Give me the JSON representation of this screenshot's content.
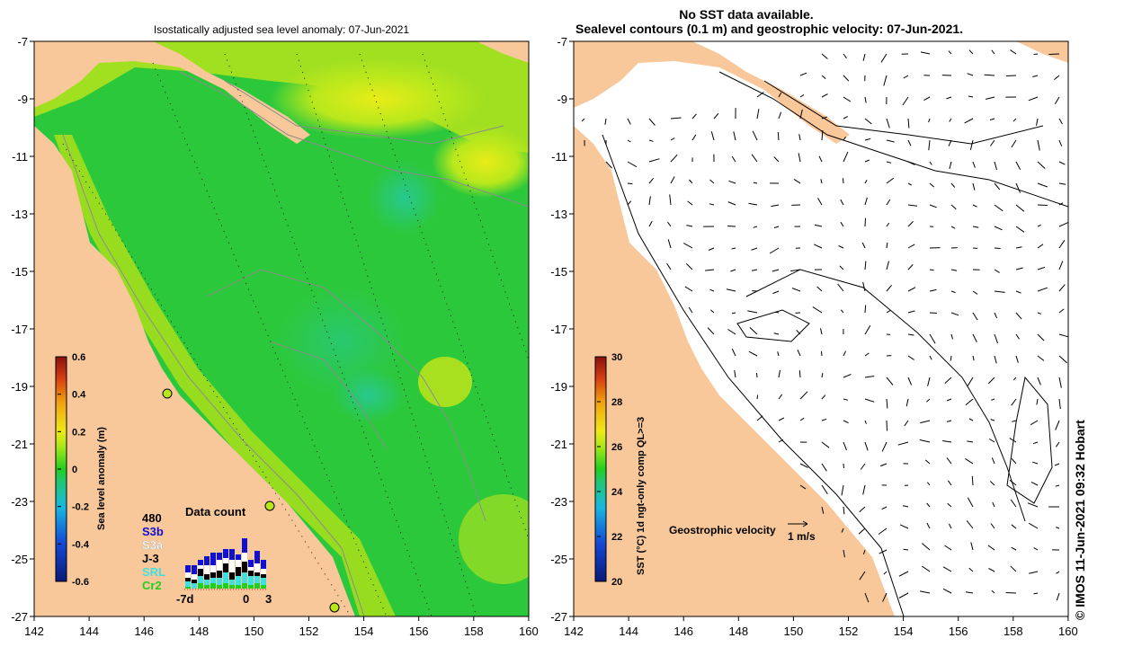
{
  "left_panel": {
    "title": "Isostatically adjusted sea level anomaly: 07-Jun-2021",
    "colorbar": {
      "label": "Sea level anomaly (m)",
      "ticks": [
        "0.6",
        "0.4",
        "0.2",
        "0",
        "-0.2",
        "-0.4",
        "-0.6"
      ],
      "range": [
        -0.6,
        0.6
      ]
    },
    "data_count": {
      "title": "Data count",
      "max_label": "480",
      "satellites": [
        {
          "name": "S3b",
          "color": "#1010d0"
        },
        {
          "name": "S3a",
          "color": "#ffffff"
        },
        {
          "name": "J-3",
          "color": "#000000"
        },
        {
          "name": "SRL",
          "color": "#40e0e0"
        },
        {
          "name": "Cr2",
          "color": "#20d020"
        }
      ],
      "x_labels": [
        "-7d",
        "0",
        "3"
      ]
    }
  },
  "right_panel": {
    "title_line1": "No SST data available.",
    "title_line2": "Sealevel contours (0.1 m) and geostrophic velocity: 07-Jun-2021.",
    "colorbar": {
      "label": "SST (°C) 1d ngt-only comp QL>=3",
      "ticks": [
        "30",
        "28",
        "26",
        "24",
        "22",
        "20"
      ],
      "range": [
        20,
        30
      ]
    },
    "velocity_legend": {
      "label": "Geostrophic velocity",
      "scale_label": "1 m/s"
    }
  },
  "axes": {
    "lat_ticks": [
      "-7",
      "-9",
      "-11",
      "-13",
      "-15",
      "-17",
      "-19",
      "-21",
      "-23",
      "-25",
      "-27"
    ],
    "lon_ticks": [
      "142",
      "144",
      "146",
      "148",
      "150",
      "152",
      "154",
      "156",
      "158",
      "160"
    ]
  },
  "credit": "© IMOS 11-Jun-2021 09:32 Hobart",
  "colors": {
    "land": "#f8c89a",
    "ocean_green": "#2cc83c",
    "ocean_yellowgreen": "#b4e81c",
    "contour_grey": "#8c8c8c"
  }
}
